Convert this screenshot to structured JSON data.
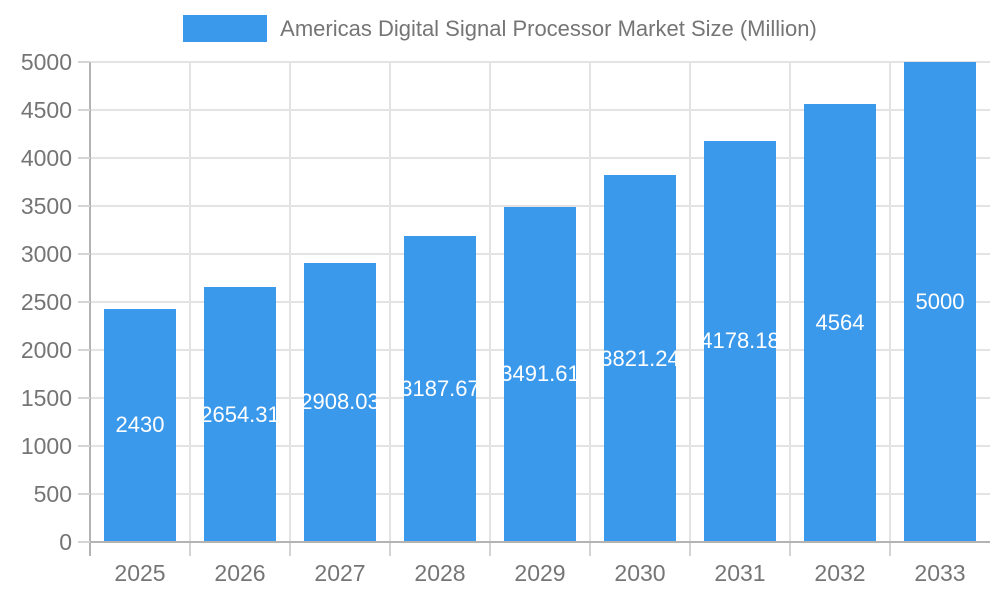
{
  "chart_data": {
    "type": "bar",
    "title": "Americas Digital Signal Processor Market Size (Million)",
    "legend": {
      "position": "top",
      "entries": [
        "Americas Digital Signal Processor Market Size (Million)"
      ]
    },
    "categories": [
      "2025",
      "2026",
      "2027",
      "2028",
      "2029",
      "2030",
      "2031",
      "2032",
      "2033"
    ],
    "values": [
      2430,
      2654.31,
      2908.03,
      3187.67,
      3491.61,
      3821.24,
      4178.18,
      4564,
      5000
    ],
    "bar_labels": [
      "2430",
      "2654.31",
      "2908.03",
      "3187.67",
      "3491.61",
      "3821.24",
      "4178.18",
      "4564",
      "5000"
    ],
    "xlabel": "",
    "ylabel": "",
    "y_ticks": [
      "0",
      "500",
      "1000",
      "1500",
      "2000",
      "2500",
      "3000",
      "3500",
      "4000",
      "4500",
      "5000"
    ],
    "ylim": [
      0,
      5000
    ],
    "grid": true,
    "colors": {
      "bar": "#3b99ec",
      "value_label": "#ffffff",
      "text": "#757575",
      "grid": "#e3e3e3",
      "axis": "#b3b3b3",
      "tick": "#d4d4d4"
    }
  }
}
